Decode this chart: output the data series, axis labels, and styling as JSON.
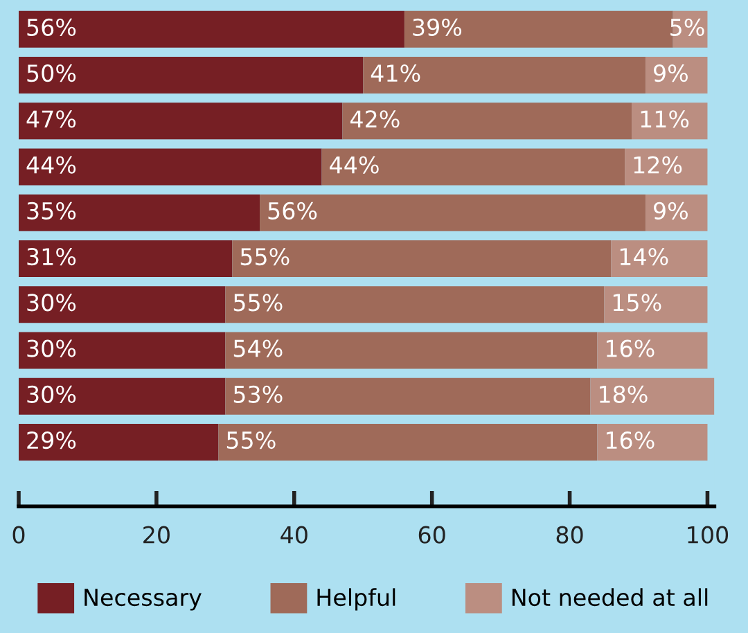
{
  "chart_data": {
    "type": "bar",
    "orientation": "horizontal",
    "stacked": true,
    "categories": [
      null,
      null,
      null,
      null,
      null,
      null,
      null,
      null,
      null,
      null
    ],
    "series": [
      {
        "name": "Necessary",
        "color": "#761f24",
        "values": [
          56,
          50,
          47,
          44,
          35,
          31,
          30,
          30,
          30,
          29
        ],
        "value_labels": [
          "56%",
          "50%",
          "47%",
          "44%",
          "35%",
          "31%",
          "30%",
          "30%",
          "30%",
          "29%"
        ]
      },
      {
        "name": "Helpful",
        "color": "#9f6a59",
        "values": [
          39,
          41,
          42,
          44,
          56,
          55,
          55,
          54,
          53,
          55
        ],
        "value_labels": [
          "39%",
          "41%",
          "42%",
          "44%",
          "56%",
          "55%",
          "55%",
          "54%",
          "53%",
          "55%"
        ]
      },
      {
        "name": "Not needed at all",
        "color": "#bb8e81",
        "values": [
          5,
          9,
          11,
          12,
          9,
          14,
          15,
          16,
          18,
          16
        ],
        "value_labels": [
          "5%",
          "9%",
          "11%",
          "12%",
          "9%",
          "14%",
          "15%",
          "16%",
          "18%",
          "16%"
        ]
      }
    ],
    "xlim": [
      0,
      101
    ],
    "xticks": [
      0,
      20,
      40,
      60,
      80,
      100
    ],
    "tick_labels": "x",
    "grid": false,
    "legend": "bottom"
  }
}
